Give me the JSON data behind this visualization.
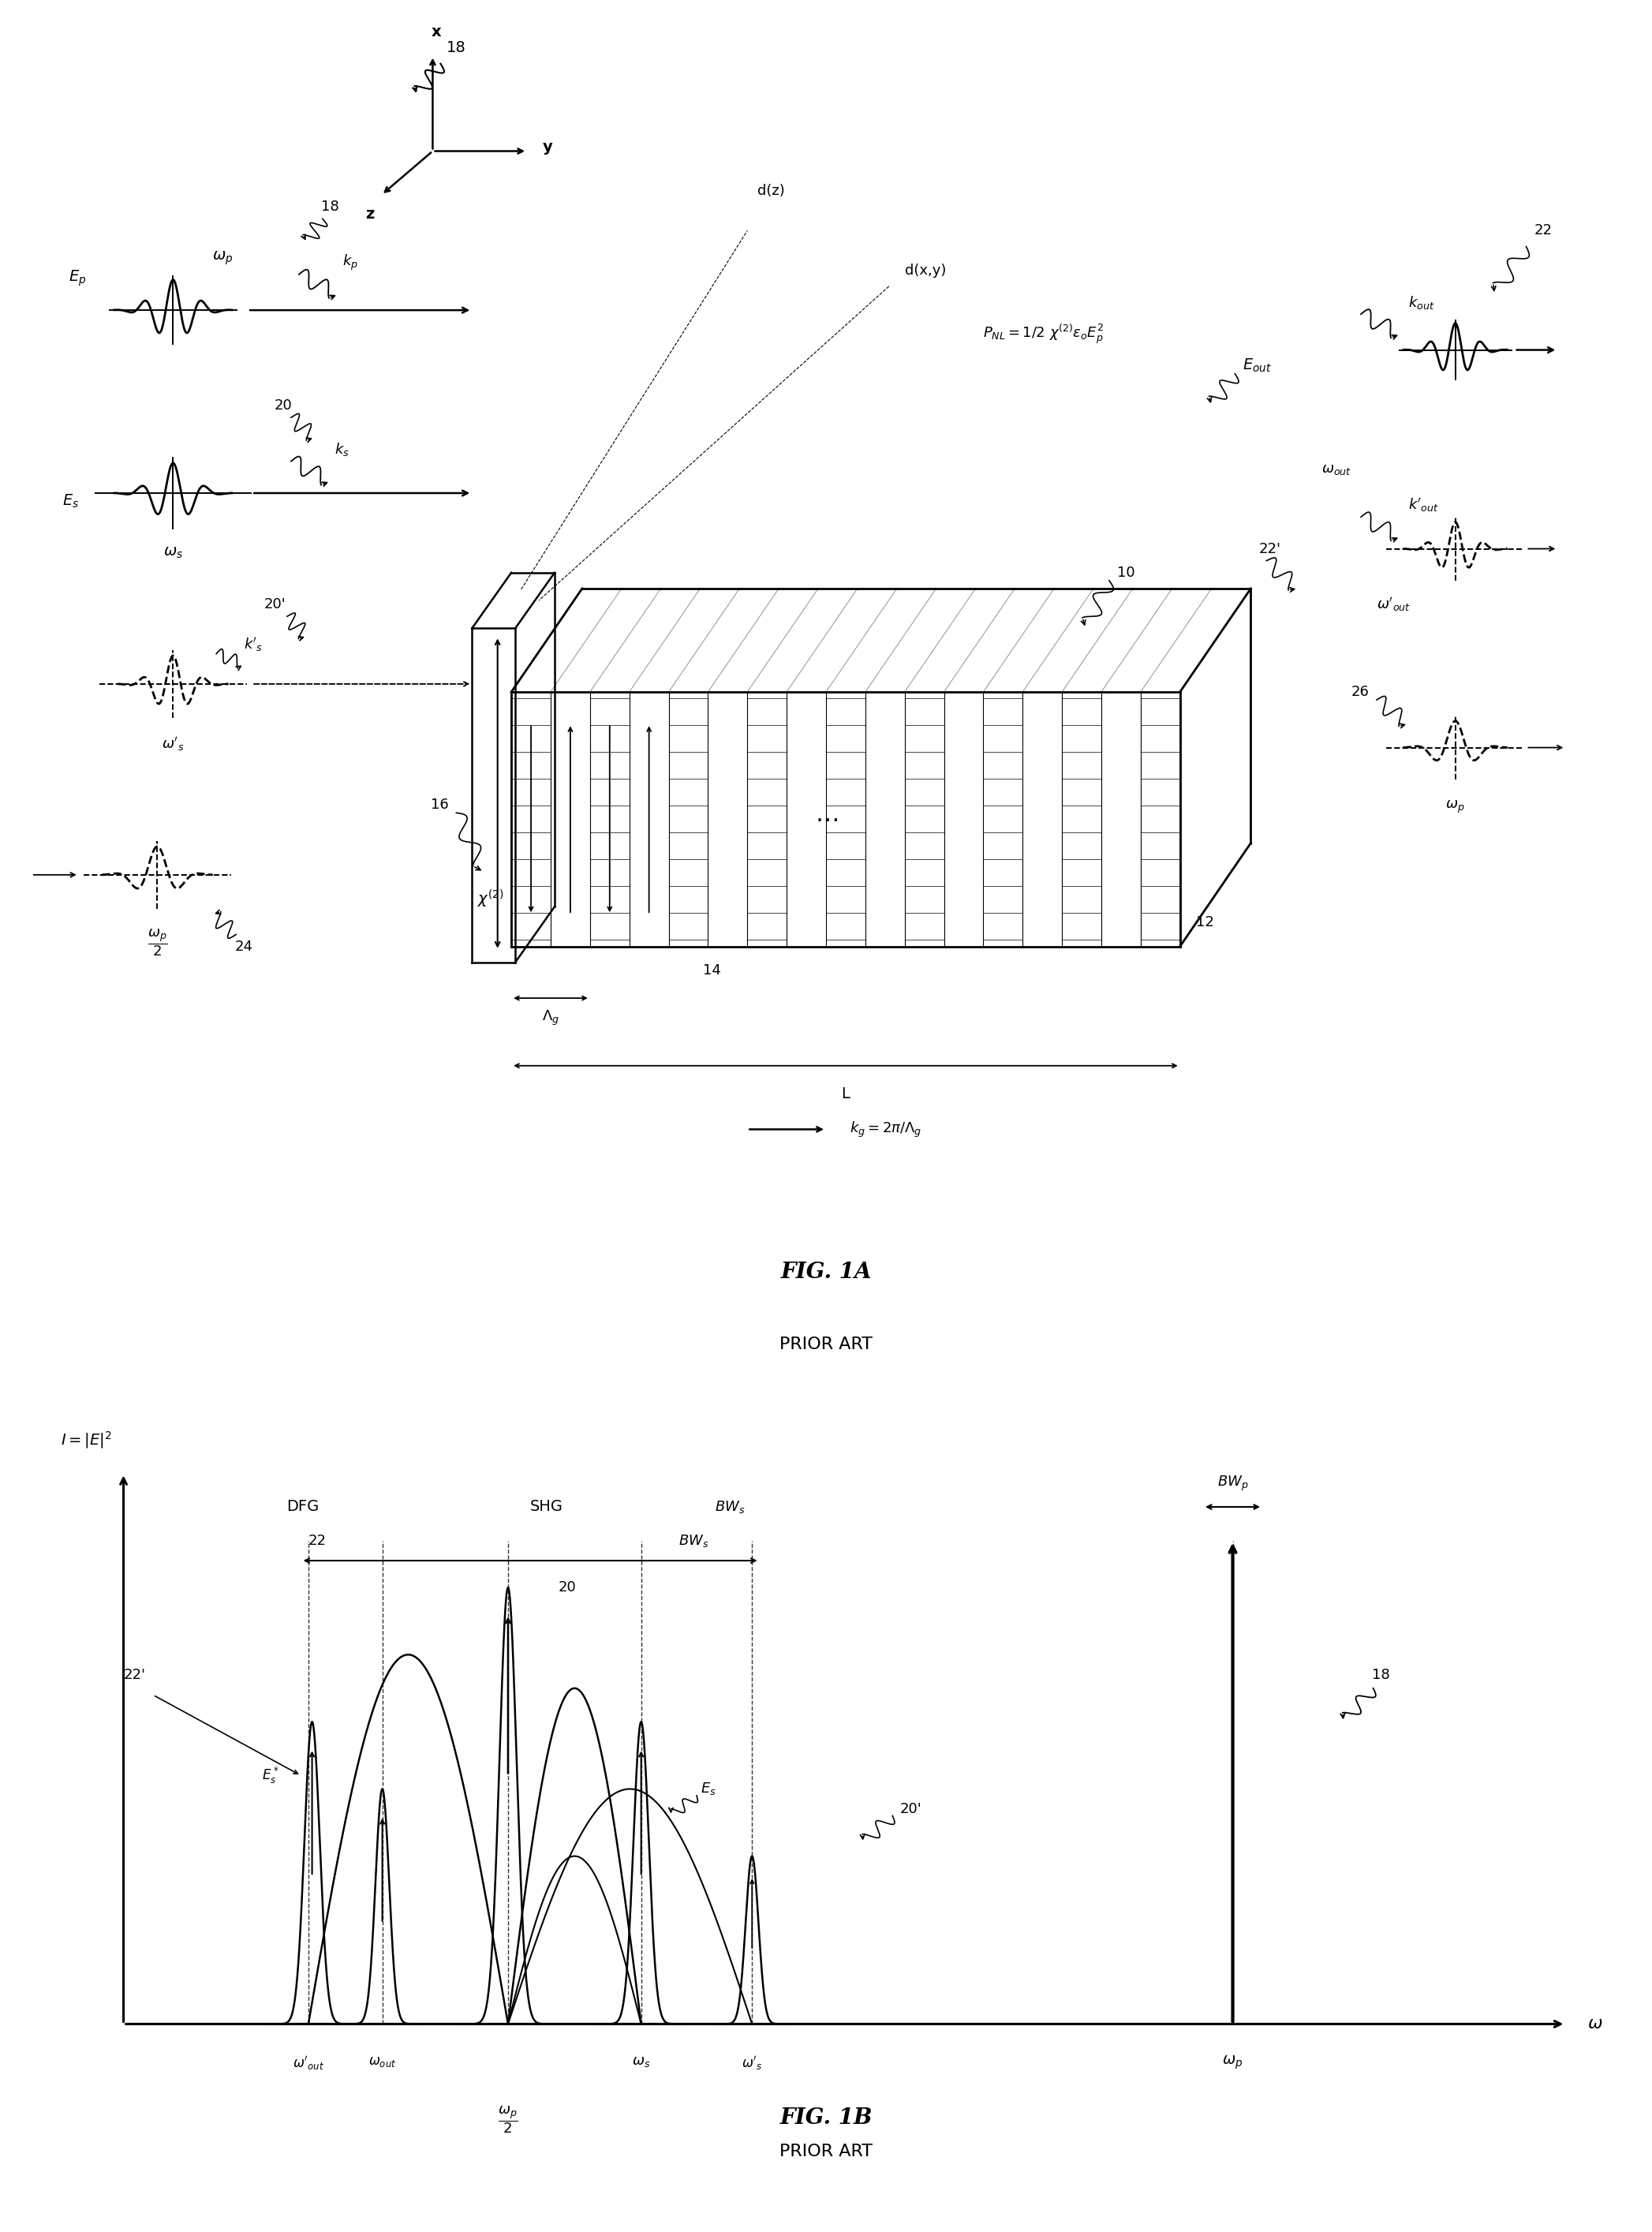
{
  "fig_title_A": "FIG. 1A",
  "fig_title_B": "FIG. 1B",
  "subtitle": "PRIOR ART",
  "background_color": "#ffffff",
  "figsize": [
    20.94,
    28.29
  ]
}
